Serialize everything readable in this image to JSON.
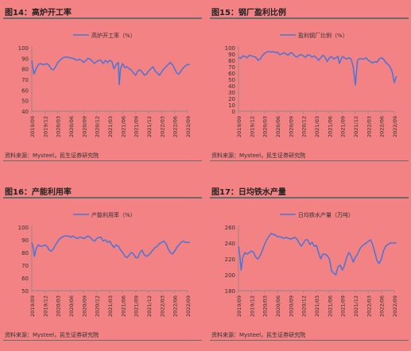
{
  "panels": [
    {
      "title": "图14：高炉开工率",
      "source": "资料来源：Mysteel，民生证券研究院"
    },
    {
      "title": "图15：钢厂盈利比例",
      "source": "资料来源：Mysteel，民生证券研究院"
    },
    {
      "title": "图16：产能利用率",
      "source": "资料来源：Mysteel，民生证券研究院"
    },
    {
      "title": "图17：日均铁水产量",
      "source": "资料来源：Mysteel，民生证券研究院"
    }
  ],
  "colors": {
    "line": "#4a74d8",
    "axis": "#888888",
    "text": "#333333"
  },
  "chart_data": [
    {
      "type": "line",
      "legend": "高炉开工率（%）",
      "legend_position": "top",
      "ylim": [
        40,
        100
      ],
      "yticks": [
        40,
        50,
        60,
        70,
        80,
        90,
        100
      ],
      "xticks": [
        "2019/09",
        "2019/12",
        "2020/03",
        "2020/06",
        "2020/09",
        "2020/12",
        "2021/03",
        "2021/06",
        "2021/09",
        "2021/12",
        "2022/03",
        "2022/06",
        "2022/09"
      ],
      "x": [
        0,
        0.2,
        0.5,
        1,
        1.5,
        2,
        2.5,
        3,
        3.5,
        4,
        4.5,
        5,
        5.5,
        6,
        6.5,
        7,
        7.5,
        8,
        8.5,
        9,
        9.5,
        10,
        10.5,
        11,
        11.5,
        12,
        12.5,
        13,
        13.5,
        14,
        14.5,
        15,
        15.5,
        16,
        16.5,
        17,
        17.5,
        18,
        18.5,
        19,
        19.5,
        20,
        20.2,
        20.5,
        21,
        21.5,
        22,
        22.5,
        23,
        23.5,
        24,
        24.5,
        25,
        25.5,
        26,
        26.5,
        27,
        27.5,
        28,
        28.5,
        29,
        29.5,
        30,
        30.5,
        31,
        31.5,
        32,
        32.5,
        33,
        33.5,
        34,
        34.5,
        35,
        35.5,
        36,
        36.5
      ],
      "y": [
        88,
        82,
        75,
        80,
        84,
        85,
        84,
        84,
        85,
        83,
        80,
        79,
        82,
        86,
        88,
        90,
        91,
        91,
        91,
        90,
        90,
        89,
        88,
        89,
        88,
        86,
        88,
        90,
        89,
        87,
        85,
        87,
        88,
        88,
        85,
        88,
        86,
        88,
        87,
        80,
        84,
        86,
        65,
        80,
        85,
        81,
        82,
        80,
        79,
        76,
        74,
        78,
        79,
        77,
        74,
        75,
        78,
        80,
        82,
        78,
        76,
        74,
        77,
        80,
        82,
        84,
        86,
        84,
        80,
        76,
        75,
        78,
        81,
        83,
        84,
        84
      ]
    },
    {
      "type": "line",
      "legend": "盈利钢厂比例（%）",
      "legend_position": "top",
      "ylim": [
        0,
        100
      ],
      "yticks": [
        0,
        10,
        20,
        30,
        40,
        50,
        60,
        70,
        80,
        90,
        100
      ],
      "xticks": [
        "2019/09",
        "2019/12",
        "2020/03",
        "2020/06",
        "2020/09",
        "2020/12",
        "2021/03",
        "2021/06",
        "2021/09",
        "2021/12",
        "2022/03",
        "2022/06",
        "2022/09"
      ],
      "x": [
        0,
        0.5,
        1,
        1.5,
        2,
        2.5,
        3,
        3.5,
        4,
        4.5,
        5,
        5.5,
        6,
        6.5,
        7,
        7.5,
        8,
        8.5,
        9,
        9.5,
        10,
        10.5,
        11,
        11.5,
        12,
        12.5,
        13,
        13.5,
        14,
        14.5,
        15,
        15.5,
        16,
        16.5,
        17,
        17.5,
        18,
        18.5,
        19,
        19.5,
        20,
        20.5,
        21,
        21.5,
        22,
        22.5,
        23,
        23.3,
        23.6,
        24,
        24.5,
        25,
        25.5,
        26,
        26.5,
        27,
        27.5,
        28,
        28.5,
        29,
        29.5,
        30,
        30.5,
        31,
        31.5,
        32,
        32.5,
        33,
        33.5,
        34,
        34.5,
        35,
        35.5,
        36,
        36.5
      ],
      "y": [
        85,
        83,
        87,
        86,
        84,
        88,
        87,
        86,
        85,
        80,
        82,
        87,
        91,
        93,
        94,
        93,
        94,
        92,
        93,
        89,
        90,
        92,
        90,
        88,
        92,
        91,
        87,
        85,
        88,
        89,
        87,
        85,
        89,
        88,
        85,
        87,
        84,
        80,
        84,
        88,
        85,
        78,
        84,
        86,
        82,
        84,
        86,
        75,
        80,
        86,
        84,
        82,
        84,
        82,
        70,
        41,
        80,
        83,
        82,
        82,
        84,
        80,
        78,
        76,
        78,
        77,
        82,
        84,
        82,
        77,
        74,
        70,
        62,
        45,
        55
      ]
    },
    {
      "type": "line",
      "legend": "产能利用率（%）",
      "legend_position": "top",
      "ylim": [
        50,
        100
      ],
      "yticks": [
        50,
        60,
        70,
        80,
        90,
        100
      ],
      "xticks": [
        "2019/09",
        "2019/12",
        "2020/03",
        "2020/06",
        "2020/09",
        "2020/12",
        "2021/03",
        "2021/06",
        "2021/09",
        "2021/12",
        "2022/03",
        "2022/06",
        "2022/09"
      ],
      "x": [
        0,
        0.3,
        0.6,
        1,
        1.5,
        2,
        2.5,
        3,
        3.5,
        4,
        4.5,
        5,
        5.5,
        6,
        6.5,
        7,
        7.5,
        8,
        8.5,
        9,
        9.5,
        10,
        10.5,
        11,
        11.5,
        12,
        12.5,
        13,
        13.5,
        14,
        14.5,
        15,
        15.5,
        16,
        16.5,
        17,
        17.5,
        18,
        18.5,
        19,
        19.5,
        20,
        20.5,
        21,
        21.5,
        22,
        22.5,
        23,
        23.5,
        24,
        24.5,
        25,
        25.5,
        26,
        26.5,
        27,
        27.5,
        28,
        28.5,
        29,
        29.5,
        30,
        30.5,
        31,
        31.5,
        32,
        32.5,
        33,
        33.5,
        34,
        34.5,
        35,
        35.5,
        36,
        36.5
      ],
      "y": [
        88,
        84,
        77,
        83,
        86,
        85,
        85,
        86,
        85,
        82,
        81,
        83,
        86,
        89,
        91,
        92,
        93,
        93,
        93,
        92,
        93,
        92,
        91,
        92,
        92,
        91,
        92,
        93,
        92,
        90,
        89,
        91,
        92,
        92,
        89,
        90,
        88,
        89,
        86,
        84,
        86,
        85,
        82,
        80,
        77,
        76,
        78,
        80,
        79,
        76,
        76,
        80,
        82,
        78,
        77,
        78,
        80,
        82,
        84,
        85,
        87,
        88,
        89,
        87,
        83,
        80,
        79,
        81,
        84,
        86,
        88,
        89,
        88,
        88,
        88
      ]
    },
    {
      "type": "line",
      "legend": "日均铁水产量（万吨）",
      "legend_position": "top",
      "ylim": [
        180,
        260
      ],
      "yticks": [
        180,
        200,
        220,
        240,
        260
      ],
      "xticks": [
        "2019/09",
        "2019/12",
        "2020/03",
        "2020/06",
        "2020/09",
        "2020/12",
        "2021/03",
        "2021/06",
        "2021/09",
        "2021/12",
        "2022/03",
        "2022/06",
        "2022/09"
      ],
      "x": [
        0,
        0.3,
        0.6,
        1,
        1.5,
        2,
        2.5,
        3,
        3.5,
        4,
        4.5,
        5,
        5.5,
        6,
        6.5,
        7,
        7.5,
        8,
        8.5,
        9,
        9.5,
        10,
        10.5,
        11,
        11.5,
        12,
        12.5,
        13,
        13.5,
        14,
        14.5,
        15,
        15.5,
        16,
        16.5,
        17,
        17.5,
        18,
        18.5,
        19,
        19.5,
        20,
        20.5,
        21,
        21.5,
        22,
        22.5,
        23,
        23.5,
        24,
        24.5,
        25,
        25.5,
        26,
        26.5,
        27,
        27.5,
        28,
        28.5,
        29,
        29.5,
        30,
        30.5,
        31,
        31.5,
        32,
        32.5,
        33,
        33.5,
        34,
        34.5,
        35,
        35.5,
        36,
        36.5
      ],
      "y": [
        236,
        225,
        206,
        222,
        228,
        226,
        228,
        230,
        228,
        222,
        220,
        224,
        230,
        238,
        244,
        248,
        252,
        251,
        250,
        248,
        248,
        247,
        246,
        247,
        246,
        245,
        246,
        247,
        245,
        240,
        236,
        240,
        244,
        244,
        238,
        241,
        236,
        237,
        228,
        220,
        226,
        226,
        224,
        220,
        205,
        202,
        200,
        210,
        212,
        206,
        212,
        222,
        228,
        224,
        216,
        222,
        226,
        232,
        236,
        238,
        240,
        242,
        244,
        238,
        228,
        218,
        214,
        220,
        230,
        236,
        238,
        240,
        240,
        240,
        240
      ]
    }
  ]
}
